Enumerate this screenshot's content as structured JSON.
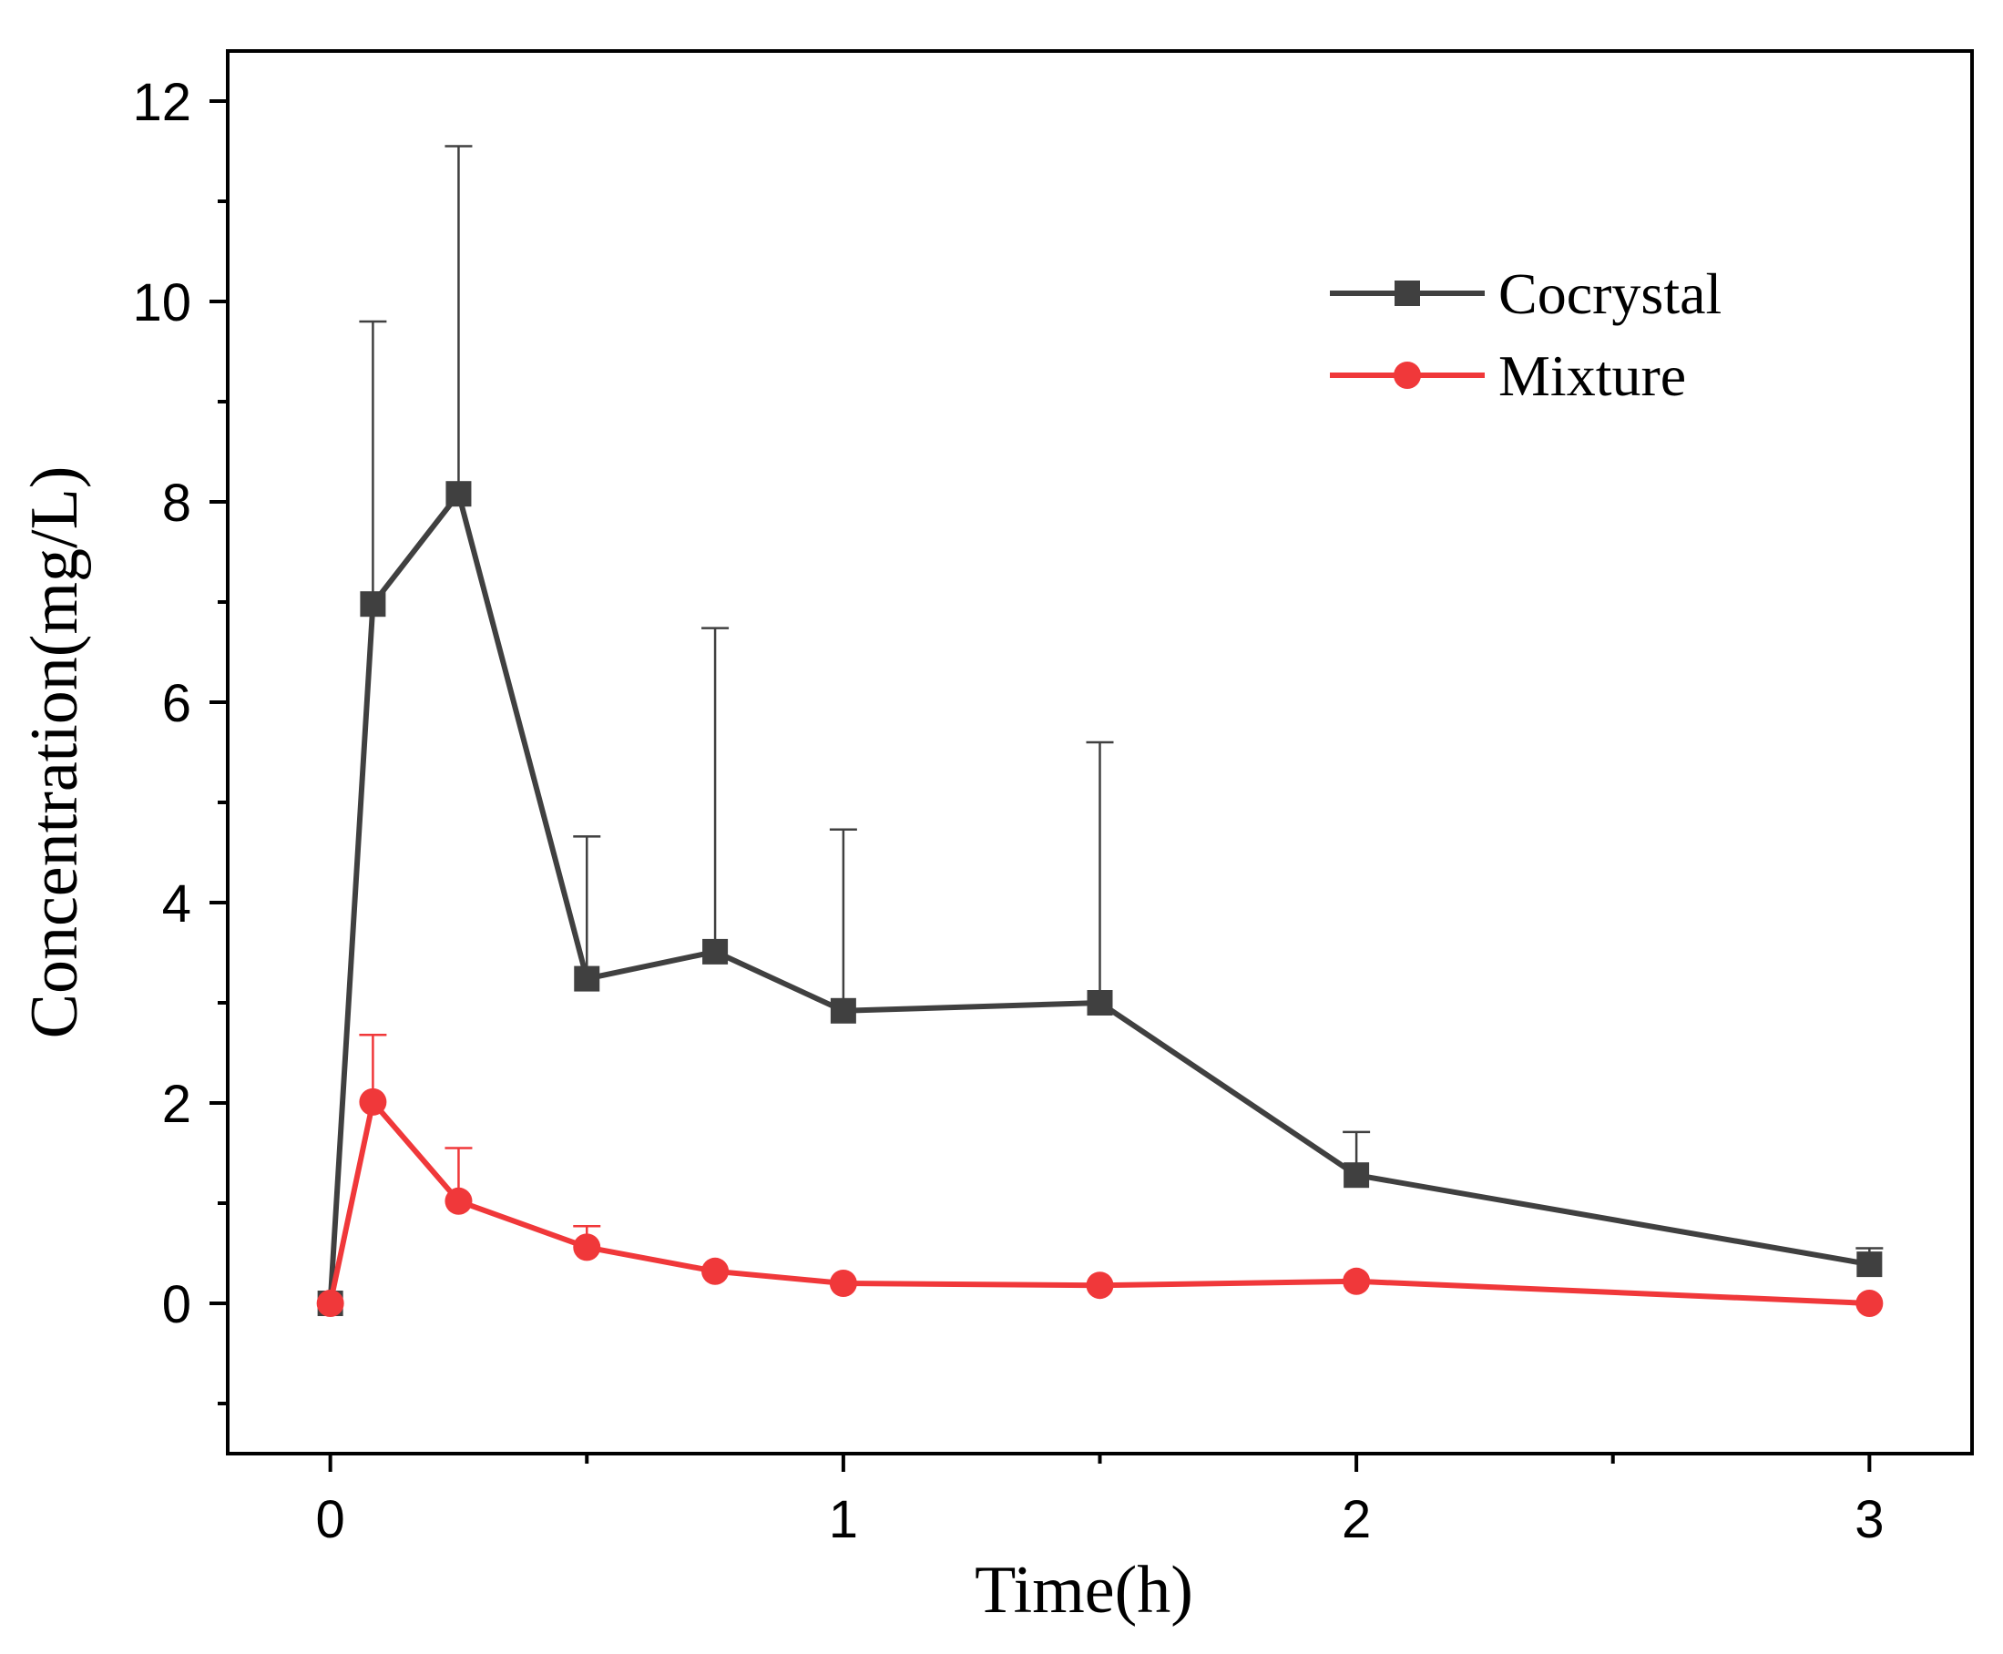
{
  "chart_data": {
    "type": "line",
    "xlabel": "Time(h)",
    "ylabel": "Concentration(mg/L)",
    "xlim": [
      -0.2,
      3.2
    ],
    "ylim": [
      -1.5,
      12.5
    ],
    "x_ticks": [
      0,
      1,
      2,
      3
    ],
    "x_minor_ticks": [
      0.5,
      1.5,
      2.5
    ],
    "y_ticks": [
      0,
      2,
      4,
      6,
      8,
      10,
      12
    ],
    "y_minor_ticks": [
      -1,
      1,
      3,
      5,
      7,
      9,
      11
    ],
    "grid": false,
    "legend_position": "top-right",
    "series": [
      {
        "name": "Cocrystal",
        "color": "#404040",
        "marker": "square",
        "x": [
          0,
          0.083,
          0.25,
          0.5,
          0.75,
          1,
          1.5,
          2,
          3
        ],
        "y": [
          0,
          6.98,
          8.08,
          3.24,
          3.51,
          2.92,
          3.0,
          1.28,
          0.39
        ],
        "error_upper": [
          0,
          2.82,
          3.47,
          1.42,
          3.23,
          1.81,
          2.6,
          0.43,
          0.16
        ]
      },
      {
        "name": "Mixture",
        "color": "#f0383a",
        "marker": "circle",
        "x": [
          0,
          0.083,
          0.25,
          0.5,
          0.75,
          1,
          1.5,
          2,
          3
        ],
        "y": [
          0,
          2.01,
          1.02,
          0.56,
          0.32,
          0.2,
          0.18,
          0.22,
          0.0
        ],
        "error_upper": [
          0,
          0.67,
          0.53,
          0.21,
          0,
          0,
          0,
          0,
          0
        ]
      }
    ]
  }
}
